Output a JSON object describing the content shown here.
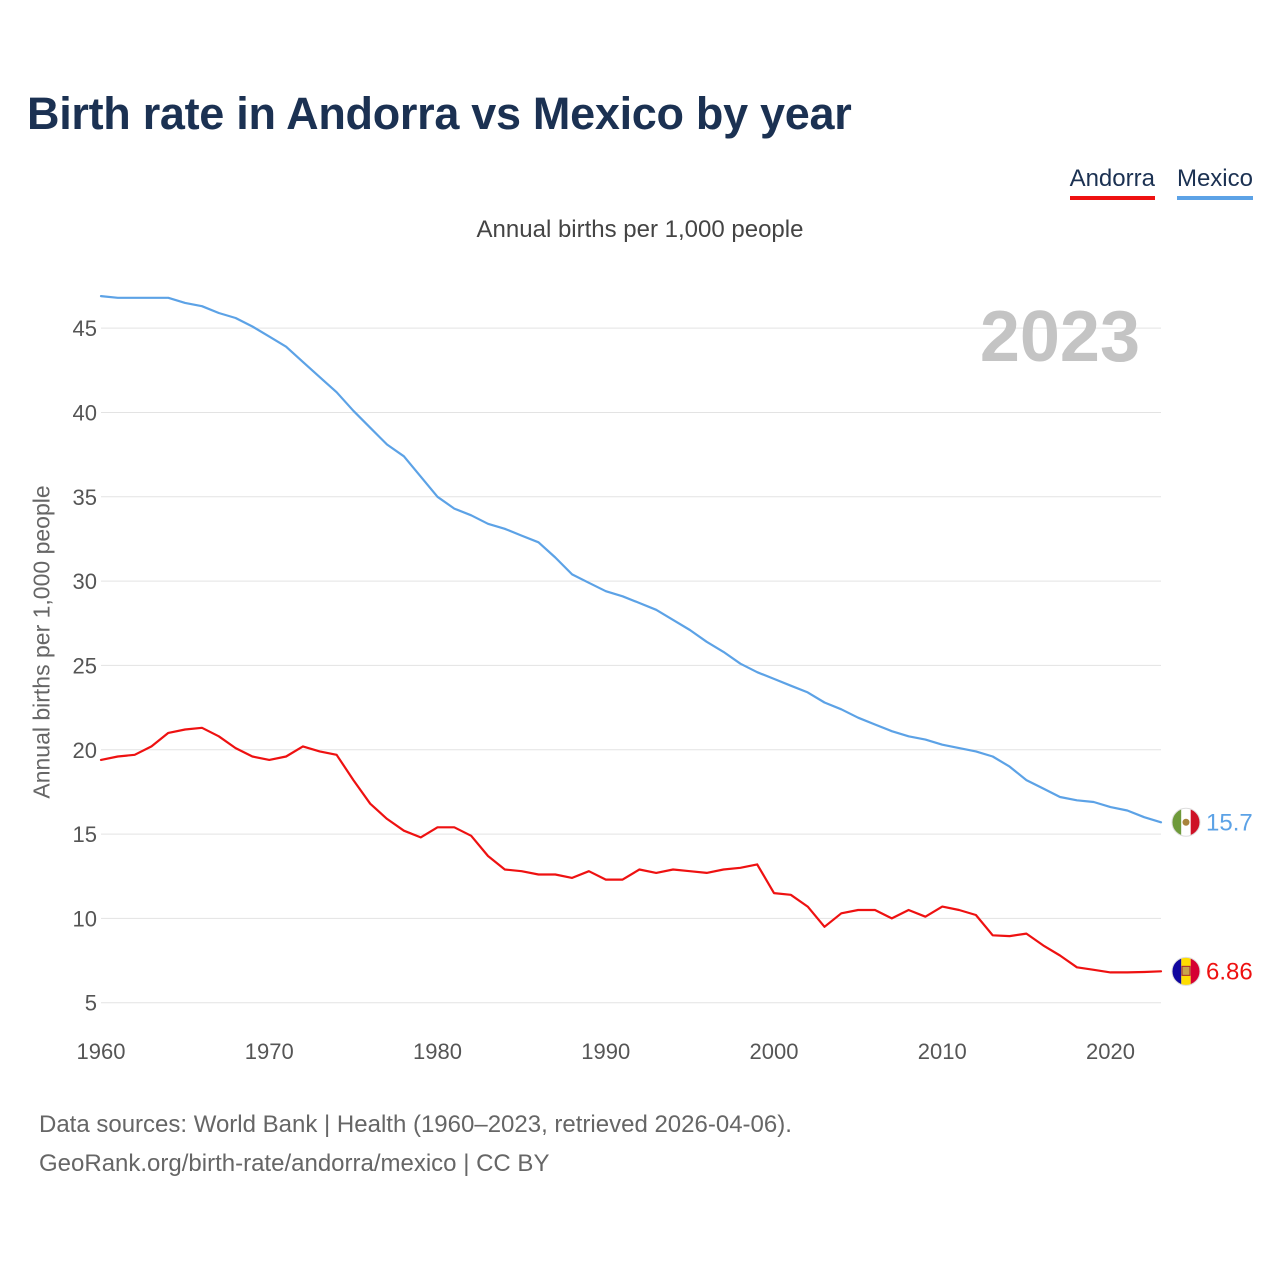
{
  "chart_data": {
    "type": "line",
    "title": "Birth rate in Andorra vs Mexico by year",
    "subtitle": "Annual births per 1,000 people",
    "ylabel": "Annual births per 1,000 people",
    "xlabel": "",
    "year_overlay": "2023",
    "xlim": [
      1960,
      2023
    ],
    "ylim": [
      3.5,
      47.5
    ],
    "xticks": [
      1960,
      1970,
      1980,
      1990,
      2000,
      2010,
      2020
    ],
    "yticks": [
      5,
      10,
      15,
      20,
      25,
      30,
      35,
      40,
      45
    ],
    "grid": true,
    "legend_position": "top-right",
    "x": [
      1960,
      1961,
      1962,
      1963,
      1964,
      1965,
      1966,
      1967,
      1968,
      1969,
      1970,
      1971,
      1972,
      1973,
      1974,
      1975,
      1976,
      1977,
      1978,
      1979,
      1980,
      1981,
      1982,
      1983,
      1984,
      1985,
      1986,
      1987,
      1988,
      1989,
      1990,
      1991,
      1992,
      1993,
      1994,
      1995,
      1996,
      1997,
      1998,
      1999,
      2000,
      2001,
      2002,
      2003,
      2004,
      2005,
      2006,
      2007,
      2008,
      2009,
      2010,
      2011,
      2012,
      2013,
      2014,
      2015,
      2016,
      2017,
      2018,
      2019,
      2020,
      2021,
      2022,
      2023
    ],
    "series": [
      {
        "name": "Andorra",
        "color": "#ee1111",
        "end_label": "6.86",
        "flag": "andorra-flag-icon",
        "values": [
          19.4,
          19.6,
          19.7,
          20.2,
          21.0,
          21.2,
          21.3,
          20.8,
          20.1,
          19.6,
          19.4,
          19.6,
          20.2,
          19.9,
          19.7,
          18.2,
          16.8,
          15.9,
          15.2,
          14.8,
          15.4,
          15.4,
          14.9,
          13.7,
          12.9,
          12.8,
          12.6,
          12.6,
          12.4,
          12.8,
          12.3,
          12.3,
          12.9,
          12.7,
          12.9,
          12.8,
          12.7,
          12.9,
          13.0,
          13.2,
          11.5,
          11.4,
          10.7,
          9.5,
          10.3,
          10.5,
          10.5,
          10.0,
          10.5,
          10.1,
          10.7,
          10.5,
          10.2,
          9.0,
          8.95,
          9.1,
          8.4,
          7.8,
          7.1,
          6.95,
          6.8,
          6.8,
          6.82,
          6.86
        ]
      },
      {
        "name": "Mexico",
        "color": "#5ca2e6",
        "end_label": "15.7",
        "flag": "mexico-flag-icon",
        "values": [
          46.9,
          46.8,
          46.8,
          46.8,
          46.8,
          46.5,
          46.3,
          45.9,
          45.6,
          45.1,
          44.5,
          43.9,
          43.0,
          42.1,
          41.2,
          40.1,
          39.1,
          38.1,
          37.4,
          36.2,
          35.0,
          34.3,
          33.9,
          33.4,
          33.1,
          32.7,
          32.3,
          31.4,
          30.4,
          29.9,
          29.4,
          29.1,
          28.7,
          28.3,
          27.7,
          27.1,
          26.4,
          25.8,
          25.1,
          24.6,
          24.2,
          23.8,
          23.4,
          22.8,
          22.4,
          21.9,
          21.5,
          21.1,
          20.8,
          20.6,
          20.3,
          20.1,
          19.9,
          19.6,
          19.0,
          18.2,
          17.7,
          17.2,
          17.0,
          16.9,
          16.6,
          16.4,
          16.0,
          15.7
        ]
      }
    ]
  },
  "legend": {
    "items": [
      "Andorra",
      "Mexico"
    ]
  },
  "footer": {
    "source_line": "Data sources: World Bank | Health (1960–2023, retrieved 2026-04-06).",
    "credit_line": "GeoRank.org/birth-rate/andorra/mexico | CC BY"
  }
}
